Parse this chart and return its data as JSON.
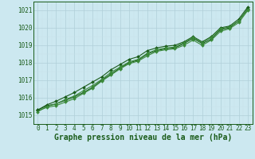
{
  "xlabel": "Graphe pression niveau de la mer (hPa)",
  "xlim": [
    -0.5,
    23.5
  ],
  "ylim": [
    1014.5,
    1021.5
  ],
  "yticks": [
    1015,
    1016,
    1017,
    1018,
    1019,
    1020,
    1021
  ],
  "xticks": [
    0,
    1,
    2,
    3,
    4,
    5,
    6,
    7,
    8,
    9,
    10,
    11,
    12,
    13,
    14,
    15,
    16,
    17,
    18,
    19,
    20,
    21,
    22,
    23
  ],
  "bg_color": "#cce8f0",
  "grid_color_major": "#b0cfd8",
  "grid_color_minor": "#c8e2ea",
  "line_color_dark": "#1a5c1a",
  "line_color_light": "#3a8a3a",
  "series": [
    [
      1015.3,
      1015.55,
      1015.65,
      1015.85,
      1016.05,
      1016.3,
      1016.6,
      1017.0,
      1017.35,
      1017.7,
      1018.0,
      1018.15,
      1018.5,
      1018.7,
      1018.8,
      1018.85,
      1019.1,
      1019.4,
      1019.1,
      1019.35,
      1019.9,
      1020.0,
      1020.4,
      1021.1
    ],
    [
      1015.25,
      1015.45,
      1015.55,
      1015.75,
      1015.95,
      1016.25,
      1016.55,
      1016.95,
      1017.3,
      1017.65,
      1017.95,
      1018.1,
      1018.4,
      1018.65,
      1018.75,
      1018.8,
      1019.0,
      1019.3,
      1019.0,
      1019.3,
      1019.8,
      1019.95,
      1020.3,
      1021.0
    ],
    [
      1015.3,
      1015.6,
      1015.8,
      1016.05,
      1016.3,
      1016.6,
      1016.9,
      1017.2,
      1017.6,
      1017.9,
      1018.2,
      1018.35,
      1018.7,
      1018.85,
      1018.95,
      1019.0,
      1019.2,
      1019.5,
      1019.2,
      1019.5,
      1020.0,
      1020.1,
      1020.5,
      1021.2
    ],
    [
      1015.2,
      1015.5,
      1015.65,
      1015.9,
      1016.1,
      1016.4,
      1016.7,
      1017.05,
      1017.45,
      1017.75,
      1018.05,
      1018.2,
      1018.55,
      1018.75,
      1018.85,
      1018.9,
      1019.15,
      1019.45,
      1019.15,
      1019.45,
      1019.95,
      1020.05,
      1020.4,
      1021.05
    ]
  ],
  "marker": "D",
  "marker_size": 2.0,
  "linewidth": 0.8,
  "font_color": "#1a5c1a",
  "tick_fontsize": 5.5,
  "label_fontsize": 7.0
}
